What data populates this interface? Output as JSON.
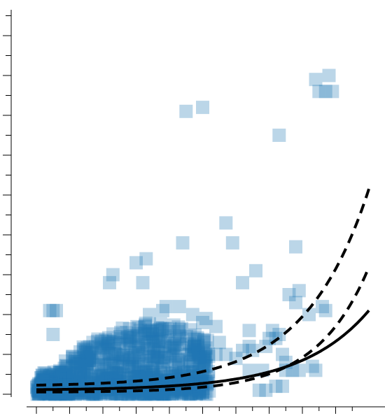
{
  "chart_data": {
    "type": "scatter",
    "title": "",
    "xlabel": "",
    "ylabel": "",
    "xlim": [
      -0.3,
      10.1
    ],
    "ylim": [
      -0.1,
      10.0
    ],
    "x_ticks": [
      0,
      0.5,
      1,
      1.5,
      2,
      2.5,
      3,
      3.5,
      4,
      4.5,
      5,
      5.5,
      6,
      6.5,
      7,
      7.5,
      8,
      8.5,
      9,
      9.5
    ],
    "y_ticks": [
      0,
      0.5,
      1,
      1.5,
      2,
      2.5,
      3,
      3.5,
      4,
      4.5,
      5,
      5.5,
      6,
      6.5,
      7,
      7.5,
      8,
      8.5,
      9,
      9.5
    ],
    "tick_labels_shown": false,
    "grid": false,
    "marker": "square",
    "marker_color": "#1f77b4",
    "line_color": "#000000",
    "points": [
      [
        5.0,
        7.2
      ],
      [
        4.5,
        7.1
      ],
      [
        7.3,
        6.5
      ],
      [
        8.5,
        7.6
      ],
      [
        8.4,
        7.9
      ],
      [
        8.8,
        8.0
      ],
      [
        8.9,
        7.6
      ],
      [
        8.7,
        7.6
      ],
      [
        5.7,
        4.3
      ],
      [
        5.9,
        3.8
      ],
      [
        4.4,
        3.8
      ],
      [
        3.0,
        3.3
      ],
      [
        3.3,
        3.4
      ],
      [
        2.2,
        2.8
      ],
      [
        2.3,
        3.0
      ],
      [
        3.2,
        2.8
      ],
      [
        6.2,
        2.8
      ],
      [
        6.6,
        3.1
      ],
      [
        7.8,
        3.7
      ],
      [
        7.9,
        2.6
      ],
      [
        7.6,
        2.5
      ],
      [
        7.8,
        2.3
      ],
      [
        8.2,
        2.0
      ],
      [
        0.6,
        2.1
      ],
      [
        0.5,
        2.1
      ],
      [
        0.4,
        2.1
      ],
      [
        0.5,
        1.5
      ],
      [
        3.8,
        2.1
      ],
      [
        3.4,
        2.0
      ],
      [
        3.9,
        2.2
      ],
      [
        4.3,
        2.2
      ],
      [
        4.7,
        2.0
      ],
      [
        5.4,
        1.7
      ],
      [
        5.0,
        1.8
      ],
      [
        5.1,
        1.9
      ],
      [
        6.4,
        1.6
      ],
      [
        7.1,
        1.6
      ],
      [
        7.0,
        1.4
      ],
      [
        7.3,
        1.5
      ],
      [
        7.2,
        1.4
      ],
      [
        6.9,
        1.2
      ],
      [
        6.4,
        1.2
      ],
      [
        6.5,
        1.1
      ],
      [
        6.2,
        1.1
      ],
      [
        6.0,
        0.9
      ],
      [
        5.5,
        1.3
      ],
      [
        5.7,
        1.0
      ],
      [
        5.4,
        1.0
      ],
      [
        7.4,
        1.0
      ],
      [
        7.5,
        0.8
      ],
      [
        7.5,
        0.6
      ],
      [
        7.7,
        0.6
      ],
      [
        7.9,
        0.6
      ],
      [
        8.3,
        0.7
      ],
      [
        8.4,
        0.6
      ],
      [
        6.4,
        0.6
      ],
      [
        6.8,
        0.6
      ],
      [
        7.2,
        0.2
      ],
      [
        7.4,
        0.2
      ],
      [
        6.7,
        0.1
      ],
      [
        6.9,
        0.1
      ],
      [
        8.7,
        2.1
      ],
      [
        8.6,
        2.2
      ]
    ],
    "dense_cluster": {
      "x_range": [
        0,
        5.2
      ],
      "y_range": [
        0,
        1.8
      ],
      "count": 900,
      "peak_y_near_x": 3.5
    },
    "series": [
      {
        "style": "solid",
        "y0": 0.1,
        "growth": 0.49
      },
      {
        "style": "dashed",
        "y0": 0.2,
        "growth": 0.52
      },
      {
        "style": "dashed",
        "y0": 0.0,
        "growth": 0.64,
        "offset": 0.05
      }
    ]
  }
}
